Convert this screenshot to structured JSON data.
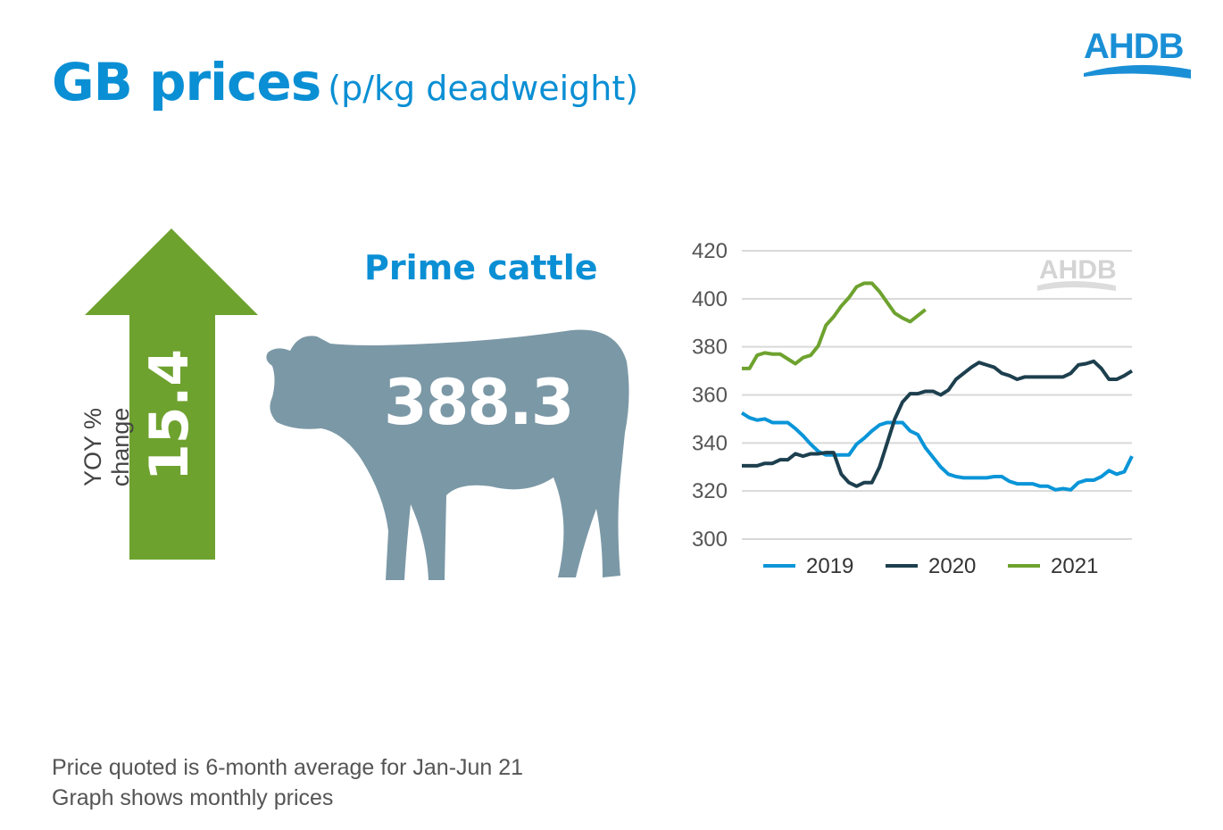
{
  "header": {
    "title": "GB prices",
    "subtitle": "(p/kg deadweight)",
    "logo": "AHDB"
  },
  "card": {
    "title": "Prime cattle",
    "price": "388.3",
    "yoy_label": "YOY % change",
    "yoy_value": "15.4",
    "colors": {
      "arrow": "#6ea22f",
      "cow": "#7b98a6",
      "accent": "#0a8fd4"
    }
  },
  "footnote": [
    "Price quoted is 6-month average for Jan-Jun 21",
    "Graph shows monthly prices"
  ],
  "chart_data": {
    "type": "line",
    "title": "",
    "xlabel": "",
    "ylabel": "",
    "ylim": [
      300,
      420
    ],
    "yticks": [
      300,
      320,
      340,
      360,
      380,
      400,
      420
    ],
    "grid": true,
    "legend": "bottom",
    "watermark": "AHDB",
    "x_points_per_year": 52,
    "series": [
      {
        "name": "2019",
        "color": "#0a95d8",
        "values": [
          352.5,
          350.5,
          349.5,
          350,
          348.5,
          348.5,
          348.5,
          346,
          343,
          339.5,
          336.5,
          335,
          335,
          335,
          335,
          339.5,
          342,
          345,
          347.5,
          348.5,
          348.5,
          348.5,
          345,
          343.5,
          338,
          334,
          330,
          327,
          326,
          325.5,
          325.5,
          325.5,
          325.5,
          326,
          326,
          324,
          323,
          323,
          323,
          322,
          322,
          320.5,
          321,
          320.5,
          323.5,
          324.5,
          324.5,
          326,
          328.5,
          327,
          328,
          334.5
        ]
      },
      {
        "name": "2020",
        "color": "#1d3f4e",
        "values": [
          330.5,
          330.5,
          330.5,
          331.5,
          331.5,
          333,
          333,
          335.5,
          334.5,
          335.5,
          335.5,
          336,
          336,
          327,
          323.5,
          322,
          323.5,
          323.5,
          330,
          340,
          350,
          357,
          360.5,
          360.5,
          361.5,
          361.5,
          360,
          362,
          366.5,
          369,
          371.5,
          373.5,
          372.5,
          371.5,
          369,
          368,
          366.5,
          367.5,
          367.5,
          367.5,
          367.5,
          367.5,
          367.5,
          369,
          372.5,
          373,
          374,
          371,
          366.5,
          366.5,
          368,
          370
        ]
      },
      {
        "name": "2021",
        "color": "#6ea22f",
        "values": [
          371,
          371,
          376.5,
          377.5,
          377,
          377,
          375,
          373,
          375.5,
          376.5,
          380.5,
          389,
          392.5,
          397,
          400.5,
          405,
          406.5,
          406.5,
          403,
          398.5,
          394,
          392,
          390.5,
          393,
          395.5
        ]
      }
    ]
  }
}
